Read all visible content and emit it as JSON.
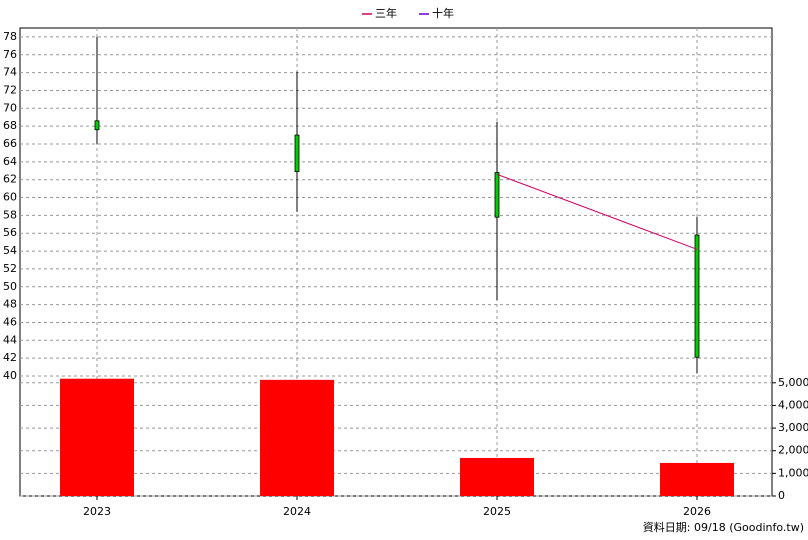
{
  "chart_data": {
    "type": "candlestick",
    "categories": [
      "2023",
      "2024",
      "2025",
      "2026"
    ],
    "open": [
      68.6,
      67.0,
      62.8,
      55.8
    ],
    "high": [
      78.0,
      74.1,
      68.5,
      57.8
    ],
    "low": [
      66.0,
      58.4,
      48.5,
      40.3
    ],
    "close": [
      67.6,
      62.9,
      57.8,
      42.1
    ],
    "candle_color": "#00cc00",
    "volume": {
      "values": [
        5180,
        5130,
        1680,
        1460
      ],
      "color": "#ff0000",
      "axis": "y2"
    },
    "series": [
      {
        "name": "三年",
        "color": "#cc0066",
        "values": [
          null,
          null,
          62.6,
          54.2
        ]
      },
      {
        "name": "十年",
        "color": "#6600cc",
        "values": [
          null,
          null,
          null,
          null
        ]
      }
    ],
    "ylim": [
      40,
      79
    ],
    "yticks": [
      40,
      42,
      44,
      46,
      48,
      50,
      52,
      54,
      56,
      58,
      60,
      62,
      64,
      66,
      68,
      70,
      72,
      74,
      76,
      78
    ],
    "y2lim": [
      0,
      5300
    ],
    "y2ticks": [
      0,
      {
        "value": 1000,
        "label": "1,000"
      },
      {
        "value": 2000,
        "label": "2,000"
      },
      {
        "value": 3000,
        "label": "3,000"
      },
      {
        "value": 4000,
        "label": "4,000"
      },
      {
        "value": 5000,
        "label": "5,000"
      }
    ],
    "grid": true,
    "footnote": "資料日期: 09/18  (Goodinfo.tw)"
  }
}
